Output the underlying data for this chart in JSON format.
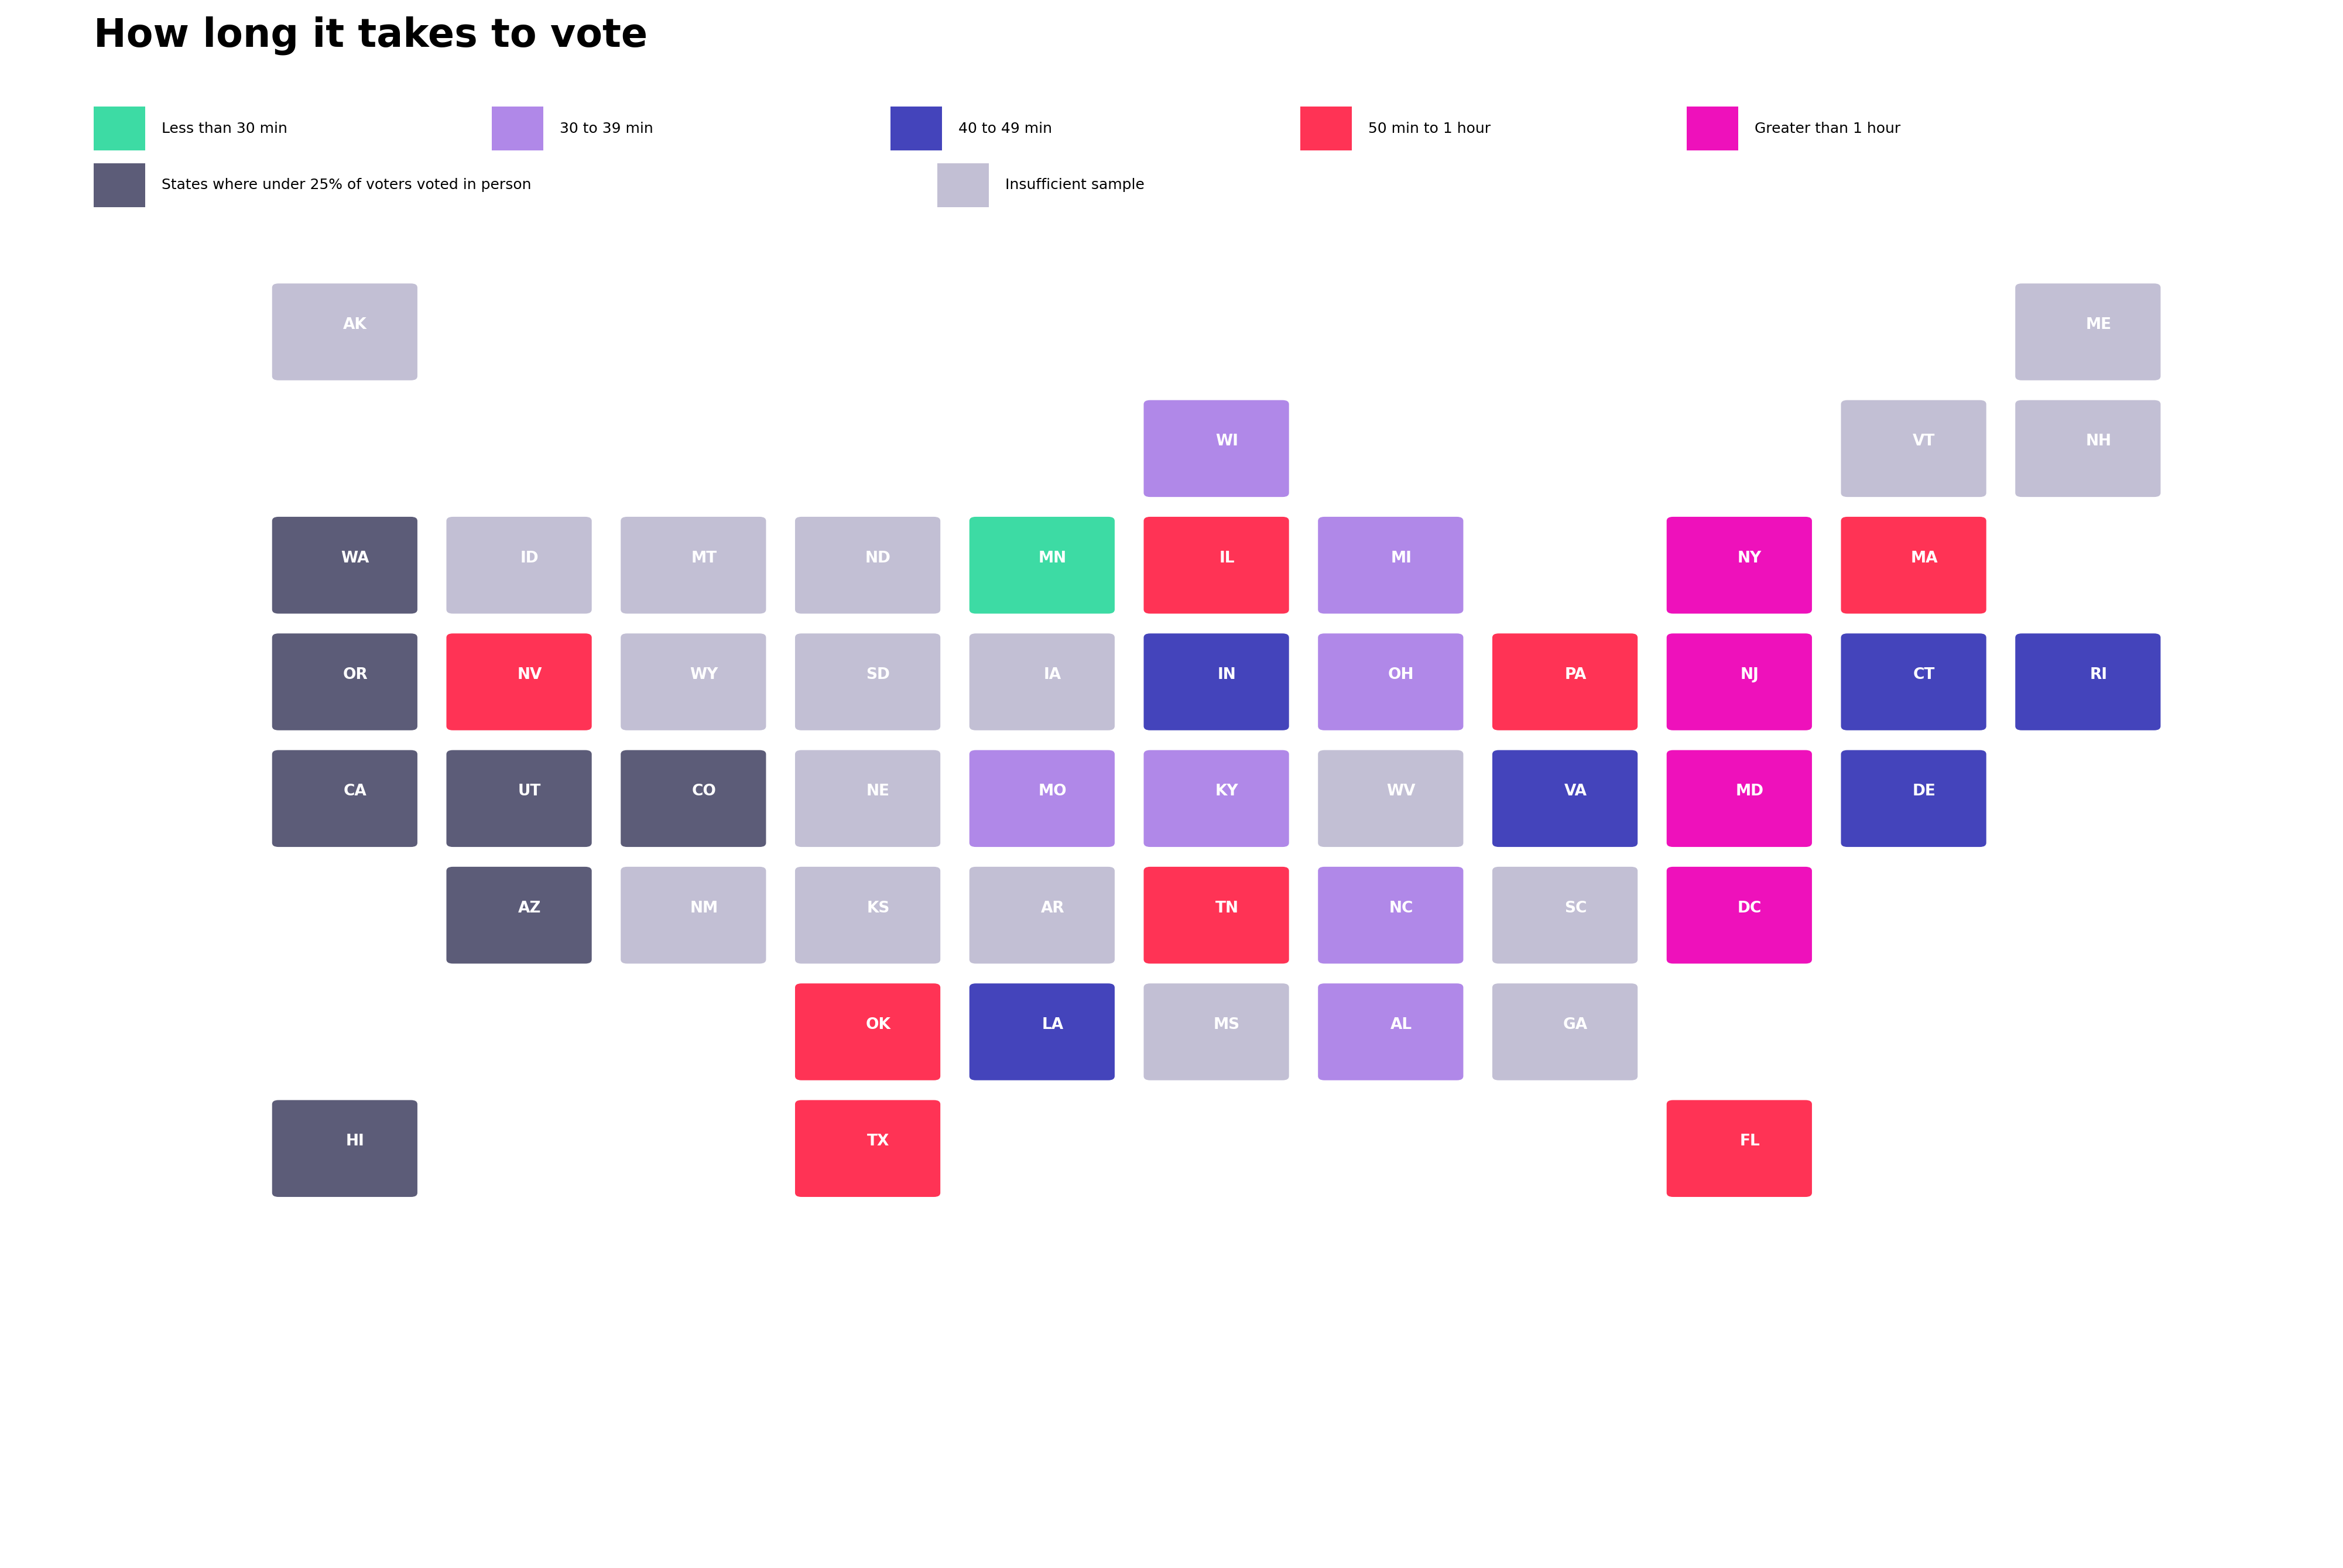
{
  "title": "How long it takes to vote",
  "colors": {
    "less_30": "#3ddba4",
    "30_39": "#b088e8",
    "40_49": "#4444bb",
    "50_60": "#ff3355",
    "gt_60": "#ee11bb",
    "under25": "#5c5c78",
    "insufficient": "#c2bfd4"
  },
  "legend": [
    {
      "label": "Less than 30 min",
      "color": "#3ddba4"
    },
    {
      "label": "30 to 39 min",
      "color": "#b088e8"
    },
    {
      "label": "40 to 49 min",
      "color": "#4444bb"
    },
    {
      "label": "50 min to 1 hour",
      "color": "#ff3355"
    },
    {
      "label": "Greater than 1 hour",
      "color": "#ee11bb"
    },
    {
      "label": "States where under 25% of voters voted in person",
      "color": "#5c5c78"
    },
    {
      "label": "Insufficient sample",
      "color": "#c2bfd4"
    }
  ],
  "states": [
    {
      "abbr": "AK",
      "col": 1,
      "row": 0,
      "color": "insufficient"
    },
    {
      "abbr": "ME",
      "col": 11,
      "row": 0,
      "color": "insufficient"
    },
    {
      "abbr": "WI",
      "col": 6,
      "row": 1,
      "color": "30_39"
    },
    {
      "abbr": "VT",
      "col": 10,
      "row": 1,
      "color": "insufficient"
    },
    {
      "abbr": "NH",
      "col": 11,
      "row": 1,
      "color": "insufficient"
    },
    {
      "abbr": "WA",
      "col": 1,
      "row": 2,
      "color": "under25"
    },
    {
      "abbr": "ID",
      "col": 2,
      "row": 2,
      "color": "insufficient"
    },
    {
      "abbr": "MT",
      "col": 3,
      "row": 2,
      "color": "insufficient"
    },
    {
      "abbr": "ND",
      "col": 4,
      "row": 2,
      "color": "insufficient"
    },
    {
      "abbr": "MN",
      "col": 5,
      "row": 2,
      "color": "less_30"
    },
    {
      "abbr": "IL",
      "col": 6,
      "row": 2,
      "color": "50_60"
    },
    {
      "abbr": "MI",
      "col": 7,
      "row": 2,
      "color": "30_39"
    },
    {
      "abbr": "NY",
      "col": 9,
      "row": 2,
      "color": "gt_60"
    },
    {
      "abbr": "MA",
      "col": 10,
      "row": 2,
      "color": "50_60"
    },
    {
      "abbr": "OR",
      "col": 1,
      "row": 3,
      "color": "under25"
    },
    {
      "abbr": "NV",
      "col": 2,
      "row": 3,
      "color": "50_60"
    },
    {
      "abbr": "WY",
      "col": 3,
      "row": 3,
      "color": "insufficient"
    },
    {
      "abbr": "SD",
      "col": 4,
      "row": 3,
      "color": "insufficient"
    },
    {
      "abbr": "IA",
      "col": 5,
      "row": 3,
      "color": "insufficient"
    },
    {
      "abbr": "IN",
      "col": 6,
      "row": 3,
      "color": "40_49"
    },
    {
      "abbr": "OH",
      "col": 7,
      "row": 3,
      "color": "30_39"
    },
    {
      "abbr": "PA",
      "col": 8,
      "row": 3,
      "color": "50_60"
    },
    {
      "abbr": "NJ",
      "col": 9,
      "row": 3,
      "color": "gt_60"
    },
    {
      "abbr": "CT",
      "col": 10,
      "row": 3,
      "color": "40_49"
    },
    {
      "abbr": "RI",
      "col": 11,
      "row": 3,
      "color": "40_49"
    },
    {
      "abbr": "CA",
      "col": 1,
      "row": 4,
      "color": "under25"
    },
    {
      "abbr": "UT",
      "col": 2,
      "row": 4,
      "color": "under25"
    },
    {
      "abbr": "CO",
      "col": 3,
      "row": 4,
      "color": "under25"
    },
    {
      "abbr": "NE",
      "col": 4,
      "row": 4,
      "color": "insufficient"
    },
    {
      "abbr": "MO",
      "col": 5,
      "row": 4,
      "color": "30_39"
    },
    {
      "abbr": "KY",
      "col": 6,
      "row": 4,
      "color": "30_39"
    },
    {
      "abbr": "WV",
      "col": 7,
      "row": 4,
      "color": "insufficient"
    },
    {
      "abbr": "VA",
      "col": 8,
      "row": 4,
      "color": "40_49"
    },
    {
      "abbr": "MD",
      "col": 9,
      "row": 4,
      "color": "gt_60"
    },
    {
      "abbr": "DE",
      "col": 10,
      "row": 4,
      "color": "40_49"
    },
    {
      "abbr": "AZ",
      "col": 2,
      "row": 5,
      "color": "under25"
    },
    {
      "abbr": "NM",
      "col": 3,
      "row": 5,
      "color": "insufficient"
    },
    {
      "abbr": "KS",
      "col": 4,
      "row": 5,
      "color": "insufficient"
    },
    {
      "abbr": "AR",
      "col": 5,
      "row": 5,
      "color": "insufficient"
    },
    {
      "abbr": "TN",
      "col": 6,
      "row": 5,
      "color": "50_60"
    },
    {
      "abbr": "NC",
      "col": 7,
      "row": 5,
      "color": "30_39"
    },
    {
      "abbr": "SC",
      "col": 8,
      "row": 5,
      "color": "insufficient"
    },
    {
      "abbr": "DC",
      "col": 9,
      "row": 5,
      "color": "gt_60"
    },
    {
      "abbr": "OK",
      "col": 4,
      "row": 6,
      "color": "50_60"
    },
    {
      "abbr": "LA",
      "col": 5,
      "row": 6,
      "color": "40_49"
    },
    {
      "abbr": "MS",
      "col": 6,
      "row": 6,
      "color": "insufficient"
    },
    {
      "abbr": "AL",
      "col": 7,
      "row": 6,
      "color": "30_39"
    },
    {
      "abbr": "GA",
      "col": 8,
      "row": 6,
      "color": "insufficient"
    },
    {
      "abbr": "HI",
      "col": 1,
      "row": 7,
      "color": "under25"
    },
    {
      "abbr": "TX",
      "col": 4,
      "row": 7,
      "color": "50_60"
    },
    {
      "abbr": "FL",
      "col": 9,
      "row": 7,
      "color": "50_60"
    }
  ],
  "n_cols": 12,
  "n_rows": 8,
  "title_fontsize": 48,
  "label_fontsize": 18,
  "state_fontsize": 19
}
